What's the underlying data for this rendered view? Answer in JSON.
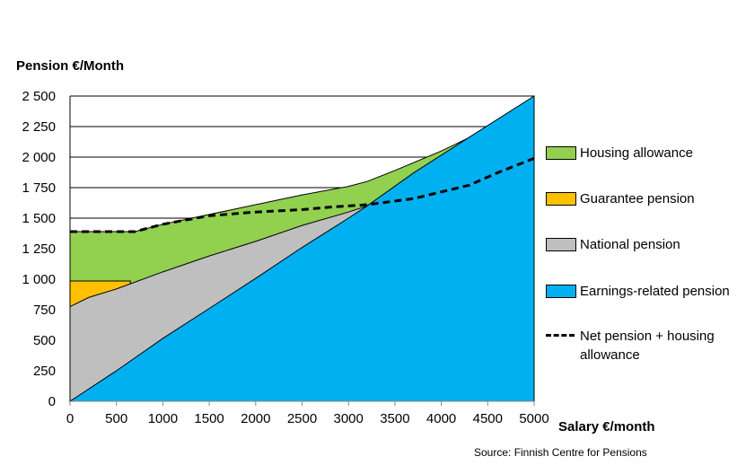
{
  "chart_data": {
    "type": "area",
    "ylabel": "Pension €/Month",
    "xlabel": "Salary €/month",
    "source": "Source: Finnish Centre for Pensions",
    "xlim": [
      0,
      5000
    ],
    "ylim": [
      0,
      2500
    ],
    "xticks": [
      "0",
      "500",
      "1000",
      "1500",
      "2000",
      "2500",
      "3000",
      "3500",
      "4000",
      "4500",
      "5000"
    ],
    "yticks": [
      "0",
      "250",
      "500",
      "750",
      "1 000",
      "1 250",
      "1 500",
      "1 750",
      "2 000",
      "2 250",
      "2 500"
    ],
    "grid": "horizontal",
    "legend_position": "right",
    "stacked_tops": [
      {
        "name": "Earnings-related pension",
        "color": "#00b0f0",
        "x": [
          0,
          500,
          1000,
          1500,
          2000,
          2500,
          3000,
          3200,
          3700,
          4275,
          5000
        ],
        "y": [
          0,
          250,
          515,
          760,
          1007,
          1260,
          1500,
          1600,
          1870,
          2150,
          2500
        ]
      },
      {
        "name": "National pension",
        "color": "#bfbfbf",
        "x": [
          0,
          200,
          500,
          1000,
          1500,
          2000,
          2500,
          3000,
          3200
        ],
        "y": [
          775,
          850,
          920,
          1060,
          1190,
          1310,
          1440,
          1550,
          1600
        ]
      },
      {
        "name": "Guarantee pension",
        "color": "#ffc000",
        "x": [
          0,
          650
        ],
        "y": [
          985,
          985
        ]
      },
      {
        "name": "Housing allowance",
        "color": "#92d050",
        "x": [
          0,
          700,
          1000,
          1500,
          2000,
          2500,
          3000,
          3200,
          3500,
          4000,
          4275
        ],
        "y": [
          1390,
          1390,
          1450,
          1530,
          1610,
          1690,
          1760,
          1800,
          1890,
          2050,
          2150
        ]
      }
    ],
    "net_line": {
      "name": "Net pension + housing allowance",
      "x": [
        0,
        700,
        1000,
        1500,
        2000,
        2500,
        2800,
        3200,
        3700,
        4300,
        4600,
        5000
      ],
      "y": [
        1390,
        1390,
        1450,
        1520,
        1550,
        1570,
        1590,
        1610,
        1660,
        1770,
        1870,
        1990
      ]
    },
    "legend": [
      {
        "label": "Housing allowance",
        "color": "#92d050"
      },
      {
        "label": "Guarantee pension",
        "color": "#ffc000"
      },
      {
        "label": "National pension",
        "color": "#bfbfbf"
      },
      {
        "label": "Earnings-related pension",
        "color": "#00b0f0"
      },
      {
        "label": "Net pension + housing allowance",
        "style": "dashed"
      }
    ]
  }
}
